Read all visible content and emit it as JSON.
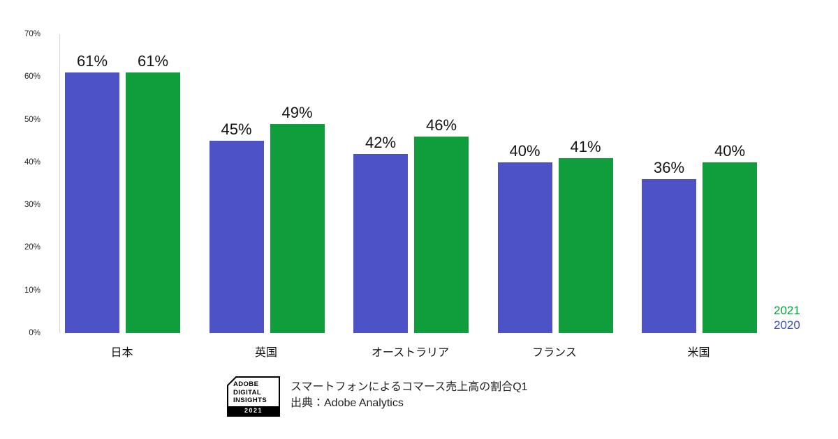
{
  "chart_data": {
    "type": "bar",
    "title": "スマートフォンによるコマース売上高の割合Q1",
    "xlabel": "",
    "ylabel": "",
    "categories": [
      "日本",
      "英国",
      "オーストラリア",
      "フランス",
      "米国"
    ],
    "series": [
      {
        "name": "2020",
        "color": "#4D53C6",
        "values": [
          61,
          45,
          42,
          40,
          36
        ]
      },
      {
        "name": "2021",
        "color": "#109D3C",
        "values": [
          61,
          49,
          46,
          41,
          40
        ]
      }
    ],
    "value_suffix": "%",
    "ylim": [
      0,
      70
    ],
    "yticks": [
      "70%",
      "60%",
      "50%",
      "40%",
      "30%",
      "20%",
      "10%",
      "0%"
    ],
    "grid": false,
    "legend_position": "right"
  },
  "legend": {
    "items": [
      {
        "label": "2021",
        "color": "#00A23C"
      },
      {
        "label": "2020",
        "color": "#3B4CC8"
      }
    ]
  },
  "footer": {
    "badge": {
      "lines": [
        "ADOBE",
        "DIGITAL",
        "INSIGHTS"
      ],
      "year": "2021"
    },
    "caption_line1": "スマートフォンによるコマース売上高の割合Q1",
    "caption_line2": "出典：Adobe Analytics"
  }
}
